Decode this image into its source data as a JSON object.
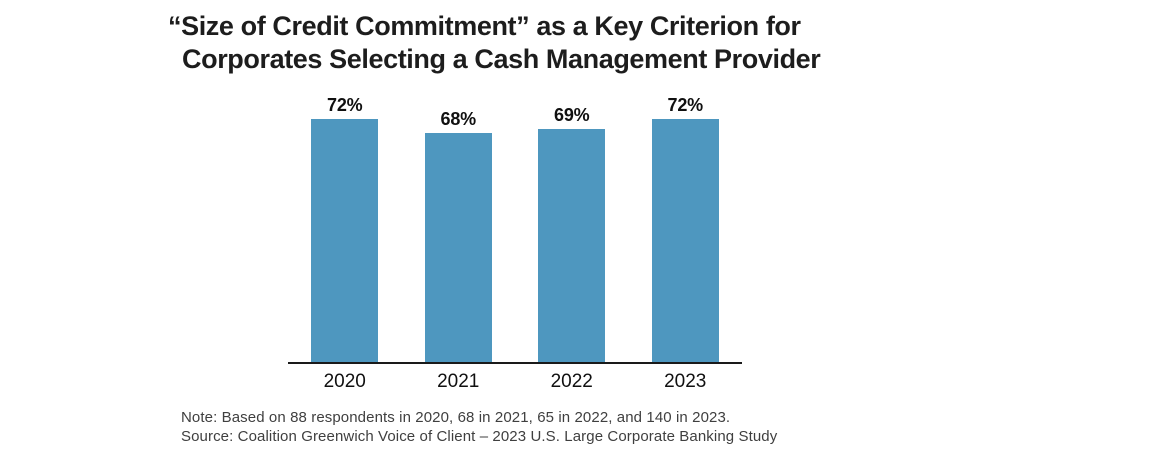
{
  "title": {
    "lines": [
      "“Size of Credit Commitment” as a Key Criterion for",
      "Corporates Selecting a Cash Management Provider"
    ]
  },
  "chart_data": {
    "type": "bar",
    "title": "“Size of Credit Commitment” as a Key Criterion for Corporates Selecting a Cash Management Provider",
    "categories": [
      "2020",
      "2021",
      "2022",
      "2023"
    ],
    "values": [
      72,
      68,
      69,
      72
    ],
    "value_labels": [
      "72%",
      "68%",
      "69%",
      "72%"
    ],
    "xlabel": "",
    "ylabel": "",
    "ylim": [
      0,
      80
    ],
    "grid": false,
    "legend": "none",
    "data_labels_position": "above-bars",
    "bar_color": "#4E97BF",
    "axis_color": "#1a1a1a"
  },
  "notes": {
    "note": "Note: Based on 88 respondents in 2020, 68 in 2021, 65 in 2022, and 140 in 2023.",
    "source": "Source: Coalition Greenwich Voice of Client – 2023 U.S. Large Corporate Banking Study"
  },
  "colors": {
    "background": "#ffffff",
    "bar": "#4E97BF",
    "axis": "#1a1a1a",
    "title_text": "#1d1d1d",
    "note_text": "#3f3f3f"
  }
}
